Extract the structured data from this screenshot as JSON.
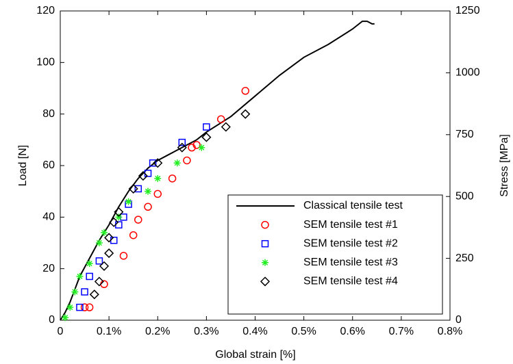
{
  "chart_data": {
    "type": "scatter",
    "x_label": "Global strain [%]",
    "y_label": "Load [N]",
    "y2_label": "Stress [MPa]",
    "xlim": [
      0,
      0.8
    ],
    "ylim": [
      0,
      120
    ],
    "y2lim": [
      0,
      1250
    ],
    "xticks": [
      0,
      {
        "value": 0.1,
        "label": "0.1%"
      },
      {
        "value": 0.2,
        "label": "0.2%"
      },
      {
        "value": 0.3,
        "label": "0.3%"
      },
      {
        "value": 0.4,
        "label": "0.4%"
      },
      {
        "value": 0.5,
        "label": "0.5%"
      },
      {
        "value": 0.6,
        "label": "0.6%"
      },
      {
        "value": 0.7,
        "label": "0.7%"
      },
      {
        "value": 0.8,
        "label": "0.8%"
      }
    ],
    "yticks": [
      0,
      20,
      40,
      60,
      80,
      100,
      120
    ],
    "y2ticks": [
      0,
      250,
      500,
      750,
      1000,
      1250
    ],
    "legend": "lower right",
    "series": [
      {
        "name": "Classical tensile test",
        "type": "line",
        "color": "#000000",
        "x": [
          0,
          0.01,
          0.02,
          0.03,
          0.04,
          0.06,
          0.08,
          0.1,
          0.12,
          0.14,
          0.16,
          0.18,
          0.2,
          0.22,
          0.25,
          0.28,
          0.3,
          0.35,
          0.4,
          0.45,
          0.5,
          0.55,
          0.6,
          0.62,
          0.63,
          0.64,
          0.645
        ],
        "values": [
          0,
          3,
          7,
          12,
          17,
          24,
          31,
          37,
          44,
          50,
          55,
          59,
          62,
          64,
          67,
          70,
          73,
          79,
          87,
          95,
          102,
          107,
          113,
          116,
          116,
          115,
          115
        ]
      },
      {
        "name": "SEM tensile test #1",
        "type": "scatter",
        "marker": "circle",
        "color": "#ff0000",
        "x": [
          0.05,
          0.06,
          0.09,
          0.13,
          0.15,
          0.16,
          0.18,
          0.2,
          0.23,
          0.26,
          0.27,
          0.28,
          0.33,
          0.38
        ],
        "values": [
          5,
          5,
          14,
          25,
          33,
          39,
          44,
          49,
          55,
          62,
          67,
          68,
          78,
          89
        ]
      },
      {
        "name": "SEM tensile test #2",
        "type": "scatter",
        "marker": "square",
        "color": "#0000ff",
        "x": [
          0.04,
          0.05,
          0.06,
          0.08,
          0.11,
          0.12,
          0.13,
          0.14,
          0.16,
          0.18,
          0.19,
          0.25,
          0.3
        ],
        "values": [
          5,
          11,
          17,
          23,
          31,
          37,
          40,
          45,
          51,
          57,
          61,
          69,
          75
        ]
      },
      {
        "name": "SEM tensile test #3",
        "type": "scatter",
        "marker": "star",
        "color": "#22ee22",
        "x": [
          0.01,
          0.02,
          0.03,
          0.04,
          0.06,
          0.08,
          0.09,
          0.12,
          0.14,
          0.18,
          0.2,
          0.24,
          0.29
        ],
        "values": [
          1,
          5,
          11,
          17,
          22,
          30,
          34,
          40,
          46,
          50,
          55,
          61,
          67
        ]
      },
      {
        "name": "SEM tensile test #4",
        "type": "scatter",
        "marker": "diamond",
        "color": "#000000",
        "x": [
          0.07,
          0.08,
          0.09,
          0.1,
          0.1,
          0.11,
          0.12,
          0.15,
          0.17,
          0.2,
          0.25,
          0.3,
          0.34,
          0.38
        ],
        "values": [
          10,
          15,
          21,
          26,
          32,
          38,
          42,
          51,
          56,
          61,
          67,
          71,
          75,
          80
        ]
      }
    ]
  }
}
